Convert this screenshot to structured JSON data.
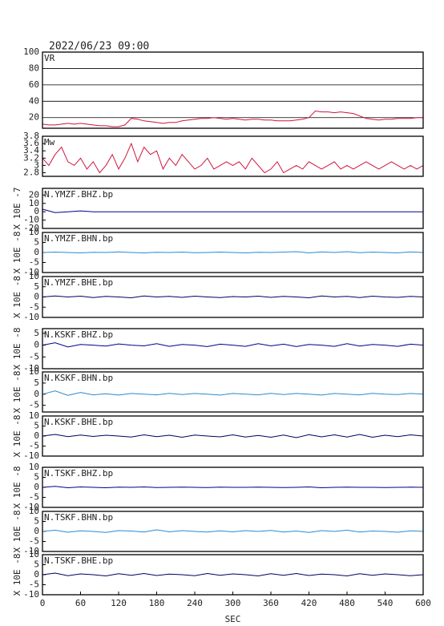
{
  "chart_data": [
    {
      "type": "line",
      "title": "2022/06/23 09:00",
      "label": "VR",
      "color": "#d0143c",
      "grid": true,
      "xlim": [
        0,
        600
      ],
      "ylim": [
        7,
        100
      ],
      "yticks": [
        20,
        40,
        60,
        80,
        100
      ],
      "x": [
        0,
        10,
        20,
        30,
        40,
        50,
        60,
        70,
        80,
        90,
        100,
        110,
        120,
        130,
        140,
        150,
        160,
        170,
        180,
        190,
        200,
        210,
        220,
        230,
        240,
        250,
        260,
        270,
        280,
        290,
        300,
        310,
        320,
        330,
        340,
        350,
        360,
        370,
        380,
        390,
        400,
        410,
        420,
        430,
        440,
        450,
        460,
        470,
        480,
        490,
        500,
        510,
        520,
        530,
        540,
        550,
        560,
        570,
        580,
        590,
        600
      ],
      "values": [
        12,
        11,
        11,
        12,
        13,
        12,
        13,
        12,
        11,
        10,
        10,
        9,
        9,
        11,
        19,
        18,
        16,
        15,
        14,
        13,
        14,
        14,
        16,
        17,
        18,
        19,
        19,
        20,
        19,
        18,
        19,
        18,
        17,
        18,
        18,
        17,
        17,
        16,
        16,
        16,
        17,
        18,
        20,
        28,
        27,
        27,
        26,
        27,
        26,
        25,
        22,
        19,
        18,
        17,
        18,
        18,
        19,
        19,
        19,
        20,
        20
      ]
    },
    {
      "type": "line",
      "label": "Mw",
      "color": "#d0143c",
      "xlim": [
        0,
        600
      ],
      "ylim": [
        2.7,
        3.8
      ],
      "yticks": [
        2.8,
        3.0,
        3.2,
        3.4,
        3.6,
        3.8
      ],
      "x": [
        0,
        10,
        20,
        30,
        40,
        50,
        60,
        70,
        80,
        90,
        100,
        110,
        120,
        130,
        140,
        150,
        160,
        170,
        180,
        190,
        200,
        210,
        220,
        230,
        240,
        250,
        260,
        270,
        280,
        290,
        300,
        310,
        320,
        330,
        340,
        350,
        360,
        370,
        380,
        390,
        400,
        410,
        420,
        430,
        440,
        450,
        460,
        470,
        480,
        490,
        500,
        510,
        520,
        530,
        540,
        550,
        560,
        570,
        580,
        590,
        600
      ],
      "values": [
        3.2,
        3.0,
        3.3,
        3.5,
        3.1,
        3.0,
        3.2,
        2.9,
        3.1,
        2.8,
        3.0,
        3.3,
        2.9,
        3.2,
        3.6,
        3.1,
        3.5,
        3.3,
        3.4,
        2.9,
        3.2,
        3.0,
        3.3,
        3.1,
        2.9,
        3.0,
        3.2,
        2.9,
        3.0,
        3.1,
        3.0,
        3.1,
        2.9,
        3.2,
        3.0,
        2.8,
        2.9,
        3.1,
        2.8,
        2.9,
        3.0,
        2.9,
        3.1,
        3.0,
        2.9,
        3.0,
        3.1,
        2.9,
        3.0,
        2.9,
        3.0,
        3.1,
        3.0,
        2.9,
        3.0,
        3.1,
        3.0,
        2.9,
        3.0,
        2.9,
        3.0
      ]
    },
    {
      "type": "line",
      "label": "N.YMZF.BHZ.bp",
      "ylabel": "X 10E -7",
      "color": "#00008b",
      "xlim": [
        0,
        600
      ],
      "ylim": [
        -20,
        28
      ],
      "yticks": [
        -20,
        -10,
        0,
        10,
        20
      ],
      "x": [
        0,
        20,
        40,
        60,
        80,
        100,
        120,
        140,
        160,
        180,
        200,
        220,
        240,
        260,
        280,
        300,
        320,
        340,
        360,
        380,
        400,
        420,
        440,
        460,
        480,
        500,
        520,
        540,
        560,
        580,
        600
      ],
      "values": [
        3,
        -1,
        0,
        1,
        0,
        0,
        0,
        0,
        0,
        0,
        0,
        0,
        0,
        0,
        0,
        0,
        0,
        0,
        0,
        0,
        0,
        0,
        0,
        0,
        0,
        0,
        0,
        0,
        0,
        0,
        0
      ]
    },
    {
      "type": "line",
      "label": "N.YMZF.BHN.bp",
      "ylabel": "X 10E -8",
      "color": "#2a8ad0",
      "xlim": [
        0,
        600
      ],
      "ylim": [
        -10,
        10
      ],
      "yticks": [
        -10,
        -5,
        0,
        5,
        10
      ],
      "x": [
        0,
        20,
        40,
        60,
        80,
        100,
        120,
        140,
        160,
        180,
        200,
        220,
        240,
        260,
        280,
        300,
        320,
        340,
        360,
        380,
        400,
        420,
        440,
        460,
        480,
        500,
        520,
        540,
        560,
        580,
        600
      ],
      "values": [
        0,
        0.2,
        0,
        -0.2,
        0.1,
        0,
        0.3,
        0,
        -0.2,
        0.1,
        0,
        0.2,
        -0.1,
        0,
        0.2,
        0,
        -0.2,
        0.1,
        0,
        0.2,
        0.4,
        -0.2,
        0.3,
        0,
        0.4,
        -0.1,
        0.2,
        0,
        -0.2,
        0.3,
        0
      ]
    },
    {
      "type": "line",
      "label": "N.YMZF.BHE.bp",
      "ylabel": "X 10E -8",
      "color": "#000060",
      "xlim": [
        0,
        600
      ],
      "ylim": [
        -10,
        10
      ],
      "yticks": [
        -10,
        -5,
        0,
        5,
        10
      ],
      "x": [
        0,
        20,
        40,
        60,
        80,
        100,
        120,
        140,
        160,
        180,
        200,
        220,
        240,
        260,
        280,
        300,
        320,
        340,
        360,
        380,
        400,
        420,
        440,
        460,
        480,
        500,
        520,
        540,
        560,
        580,
        600
      ],
      "values": [
        0,
        0.5,
        0,
        0.4,
        -0.3,
        0.3,
        0,
        -0.4,
        0.5,
        0,
        0.3,
        -0.2,
        0.4,
        0,
        -0.3,
        0.2,
        0,
        0.4,
        -0.2,
        0.3,
        0,
        -0.4,
        0.5,
        0,
        0.3,
        -0.3,
        0.4,
        0,
        -0.2,
        0.3,
        0
      ]
    },
    {
      "type": "line",
      "label": "N.KSKF.BHZ.bp",
      "ylabel": "X 10E -8",
      "color": "#00008b",
      "xlim": [
        0,
        600
      ],
      "ylim": [
        -10,
        7
      ],
      "yticks": [
        -10,
        -5,
        0,
        5
      ],
      "x": [
        0,
        20,
        40,
        60,
        80,
        100,
        120,
        140,
        160,
        180,
        200,
        220,
        240,
        260,
        280,
        300,
        320,
        340,
        360,
        380,
        400,
        420,
        440,
        460,
        480,
        500,
        520,
        540,
        560,
        580,
        600
      ],
      "values": [
        0,
        1,
        -0.8,
        0.3,
        0,
        -0.4,
        0.5,
        0,
        -0.3,
        0.6,
        -0.5,
        0.3,
        0,
        -0.6,
        0.4,
        0,
        -0.5,
        0.6,
        -0.3,
        0.4,
        -0.6,
        0.3,
        0,
        -0.5,
        0.6,
        -0.4,
        0.3,
        0,
        -0.5,
        0.4,
        0
      ]
    },
    {
      "type": "line",
      "label": "N.KSKF.BHN.bp",
      "ylabel": "X 10E -8",
      "color": "#2a8ad0",
      "xlim": [
        0,
        600
      ],
      "ylim": [
        -8,
        10
      ],
      "yticks": [
        -5,
        0,
        5,
        10
      ],
      "x": [
        0,
        20,
        40,
        60,
        80,
        100,
        120,
        140,
        160,
        180,
        200,
        220,
        240,
        260,
        280,
        300,
        320,
        340,
        360,
        380,
        400,
        420,
        440,
        460,
        480,
        500,
        520,
        540,
        560,
        580,
        600
      ],
      "values": [
        0,
        1.5,
        -0.5,
        0.8,
        -0.3,
        0.2,
        -0.4,
        0.3,
        0,
        -0.3,
        0.4,
        -0.2,
        0.3,
        0,
        -0.4,
        0.3,
        0,
        -0.3,
        0.4,
        -0.2,
        0.3,
        0,
        -0.4,
        0.3,
        0,
        -0.3,
        0.4,
        0,
        -0.2,
        0.3,
        0
      ]
    },
    {
      "type": "line",
      "label": "N.KSKF.BHE.bp",
      "ylabel": "X 10E -8",
      "color": "#000060",
      "xlim": [
        0,
        600
      ],
      "ylim": [
        -10,
        10
      ],
      "yticks": [
        -10,
        -5,
        0,
        5,
        10
      ],
      "x": [
        0,
        20,
        40,
        60,
        80,
        100,
        120,
        140,
        160,
        180,
        200,
        220,
        240,
        260,
        280,
        300,
        320,
        340,
        360,
        380,
        400,
        420,
        440,
        460,
        480,
        500,
        520,
        540,
        560,
        580,
        600
      ],
      "values": [
        0,
        0.8,
        -0.3,
        0.5,
        -0.2,
        0.4,
        0,
        -0.5,
        0.6,
        -0.3,
        0.4,
        -0.6,
        0.5,
        0,
        -0.4,
        0.6,
        -0.5,
        0.3,
        -0.6,
        0.5,
        -0.8,
        0.7,
        -0.4,
        0.6,
        -0.5,
        0.8,
        -0.6,
        0.4,
        -0.3,
        0.6,
        0
      ]
    },
    {
      "type": "line",
      "label": "N.TSKF.BHZ.bp",
      "ylabel": "X 10E -8",
      "color": "#00008b",
      "xlim": [
        0,
        600
      ],
      "ylim": [
        -10,
        10
      ],
      "yticks": [
        -10,
        -5,
        0,
        5,
        10
      ],
      "x": [
        0,
        20,
        40,
        60,
        80,
        100,
        120,
        140,
        160,
        180,
        200,
        220,
        240,
        260,
        280,
        300,
        320,
        340,
        360,
        380,
        400,
        420,
        440,
        460,
        480,
        500,
        520,
        540,
        560,
        580,
        600
      ],
      "values": [
        0,
        0.5,
        -0.2,
        0.2,
        0,
        -0.2,
        0.1,
        0,
        0.2,
        -0.1,
        0,
        0.1,
        0,
        -0.1,
        0.1,
        0,
        0,
        0.1,
        0,
        -0.1,
        0,
        0.2,
        -0.2,
        0,
        0.1,
        0,
        0,
        -0.1,
        0,
        0.1,
        0
      ]
    },
    {
      "type": "line",
      "label": "N.TSKF.BHN.bp",
      "ylabel": "X 10E -8",
      "color": "#2a8ad0",
      "xlim": [
        0,
        600
      ],
      "ylim": [
        -10,
        10
      ],
      "yticks": [
        -10,
        -5,
        0,
        5,
        10
      ],
      "x": [
        0,
        20,
        40,
        60,
        80,
        100,
        120,
        140,
        160,
        180,
        200,
        220,
        240,
        260,
        280,
        300,
        320,
        340,
        360,
        380,
        400,
        420,
        440,
        460,
        480,
        500,
        520,
        540,
        560,
        580,
        600
      ],
      "values": [
        0,
        0.6,
        -0.4,
        0.3,
        0,
        -0.5,
        0.4,
        0.2,
        -0.3,
        0.8,
        -0.2,
        0.4,
        0,
        -0.3,
        0.3,
        -0.2,
        0.4,
        0,
        0.5,
        -0.3,
        0.2,
        -0.5,
        0.4,
        0,
        0.6,
        -0.3,
        0.2,
        0,
        -0.4,
        0.3,
        0
      ]
    },
    {
      "type": "line",
      "label": "N.TSKF.BHE.bp",
      "ylabel": "X 10E -8",
      "color": "#000060",
      "xlim": [
        0,
        600
      ],
      "ylim": [
        -10,
        10
      ],
      "yticks": [
        -10,
        -5,
        0,
        5,
        10
      ],
      "xticks": [
        0,
        60,
        120,
        180,
        240,
        300,
        360,
        420,
        480,
        540,
        600
      ],
      "xlabel": "SEC",
      "x": [
        0,
        20,
        40,
        60,
        80,
        100,
        120,
        140,
        160,
        180,
        200,
        220,
        240,
        260,
        280,
        300,
        320,
        340,
        360,
        380,
        400,
        420,
        440,
        460,
        480,
        500,
        520,
        540,
        560,
        580,
        600
      ],
      "values": [
        0,
        0.8,
        -0.5,
        0.4,
        0,
        -0.6,
        0.5,
        -0.3,
        0.6,
        -0.4,
        0.3,
        0,
        -0.5,
        0.6,
        -0.3,
        0.4,
        0,
        -0.6,
        0.5,
        -0.3,
        0.6,
        -0.4,
        0.3,
        0,
        -0.6,
        0.5,
        -0.3,
        0.4,
        0,
        -0.5,
        0
      ]
    }
  ]
}
